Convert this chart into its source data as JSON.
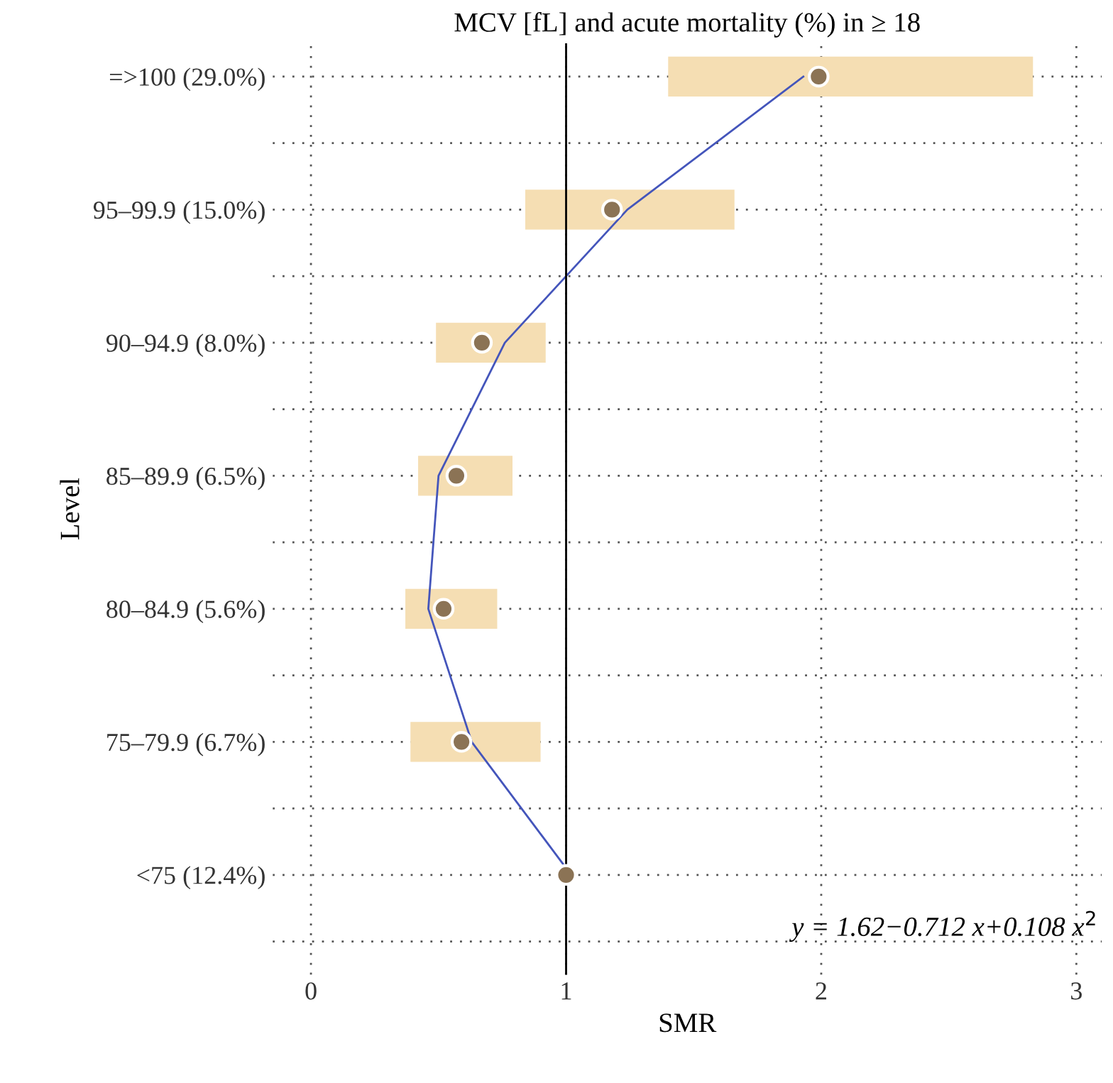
{
  "chart_data": {
    "type": "bar",
    "orientation": "horizontal",
    "title": "MCV [fL] and acute mortality (%) in ≥ 18",
    "xlabel": "SMR",
    "ylabel": "Level",
    "categories": [
      "=>100 (29.0%)",
      "95–99.9 (15.0%)",
      "90–94.9 (8.0%)",
      "85–89.9 (6.5%)",
      "80–84.9 (5.6%)",
      "75–79.9 (6.7%)",
      "<75 (12.4%)"
    ],
    "series": [
      {
        "type": "bar",
        "color": "#f5deb3",
        "base": [
          1.4,
          0.84,
          0.49,
          0.42,
          0.37,
          0.39,
          null
        ],
        "values": [
          1.43,
          0.82,
          0.43,
          0.37,
          0.36,
          0.51,
          null
        ]
      },
      {
        "type": "line",
        "marker": "none",
        "color": "#4455bb",
        "values": [
          1.93,
          1.24,
          0.76,
          0.5,
          0.46,
          0.63,
          1.02
        ]
      },
      {
        "type": "scatter",
        "marker": "circle",
        "color": "#8b7355",
        "values": [
          1.99,
          1.18,
          0.67,
          0.57,
          0.52,
          0.59,
          1.0
        ]
      }
    ],
    "xlim": [
      -0.15,
      3.1
    ],
    "xticks": [
      0,
      1,
      2,
      3
    ],
    "ref_lines": [
      {
        "axis": "x",
        "value": 1,
        "color": "#000000"
      }
    ],
    "annotations": [
      "y = 1.62−0.712 x+0.108 x$^{2}$"
    ],
    "grid": true
  }
}
